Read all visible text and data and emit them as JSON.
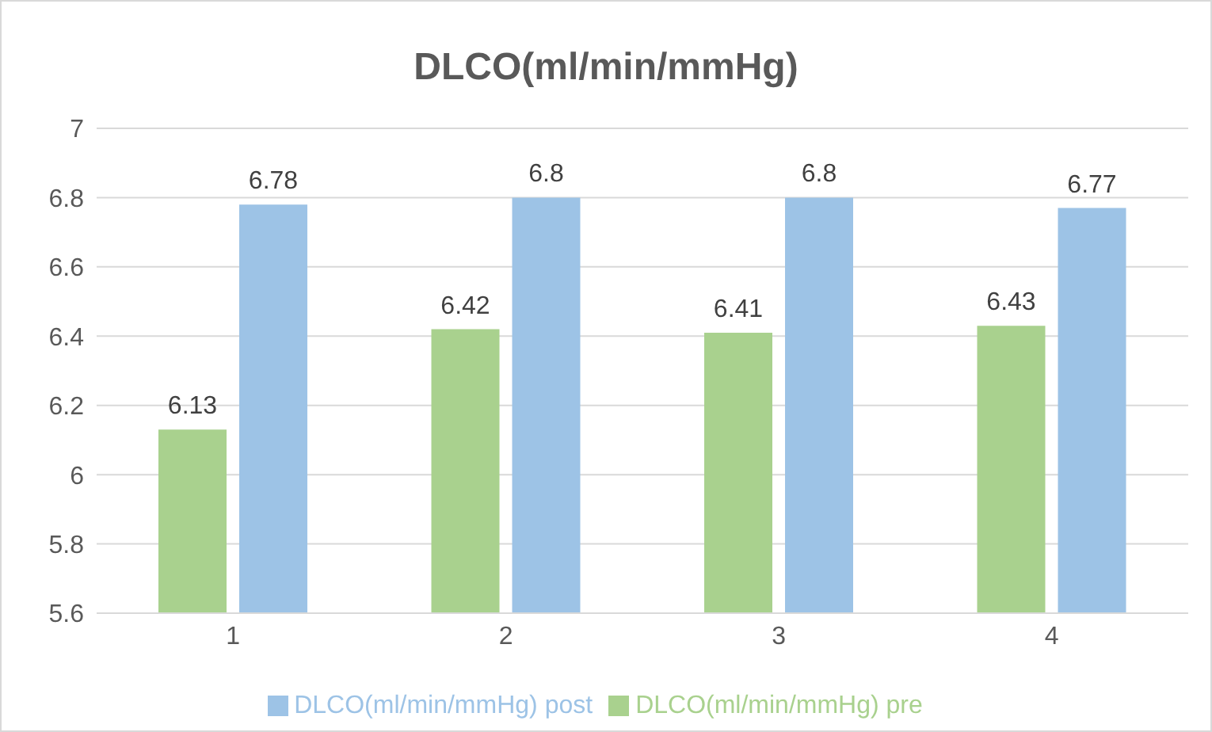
{
  "chart_data": {
    "type": "bar",
    "title": "DLCO(ml/min/mmHg)",
    "categories": [
      "1",
      "2",
      "3",
      "4"
    ],
    "series": [
      {
        "name": "DLCO(ml/min/mmHg) pre",
        "color": "#a9d18e",
        "values": [
          6.13,
          6.42,
          6.41,
          6.43
        ]
      },
      {
        "name": "DLCO(ml/min/mmHg) post",
        "color": "#9dc3e6",
        "values": [
          6.78,
          6.8,
          6.8,
          6.77
        ]
      }
    ],
    "ylim": [
      5.6,
      7
    ],
    "yticks": [
      5.6,
      5.8,
      6,
      6.2,
      6.4,
      6.6,
      6.8,
      7
    ],
    "grid": "y",
    "legend": "bottom",
    "data_labels": true
  }
}
